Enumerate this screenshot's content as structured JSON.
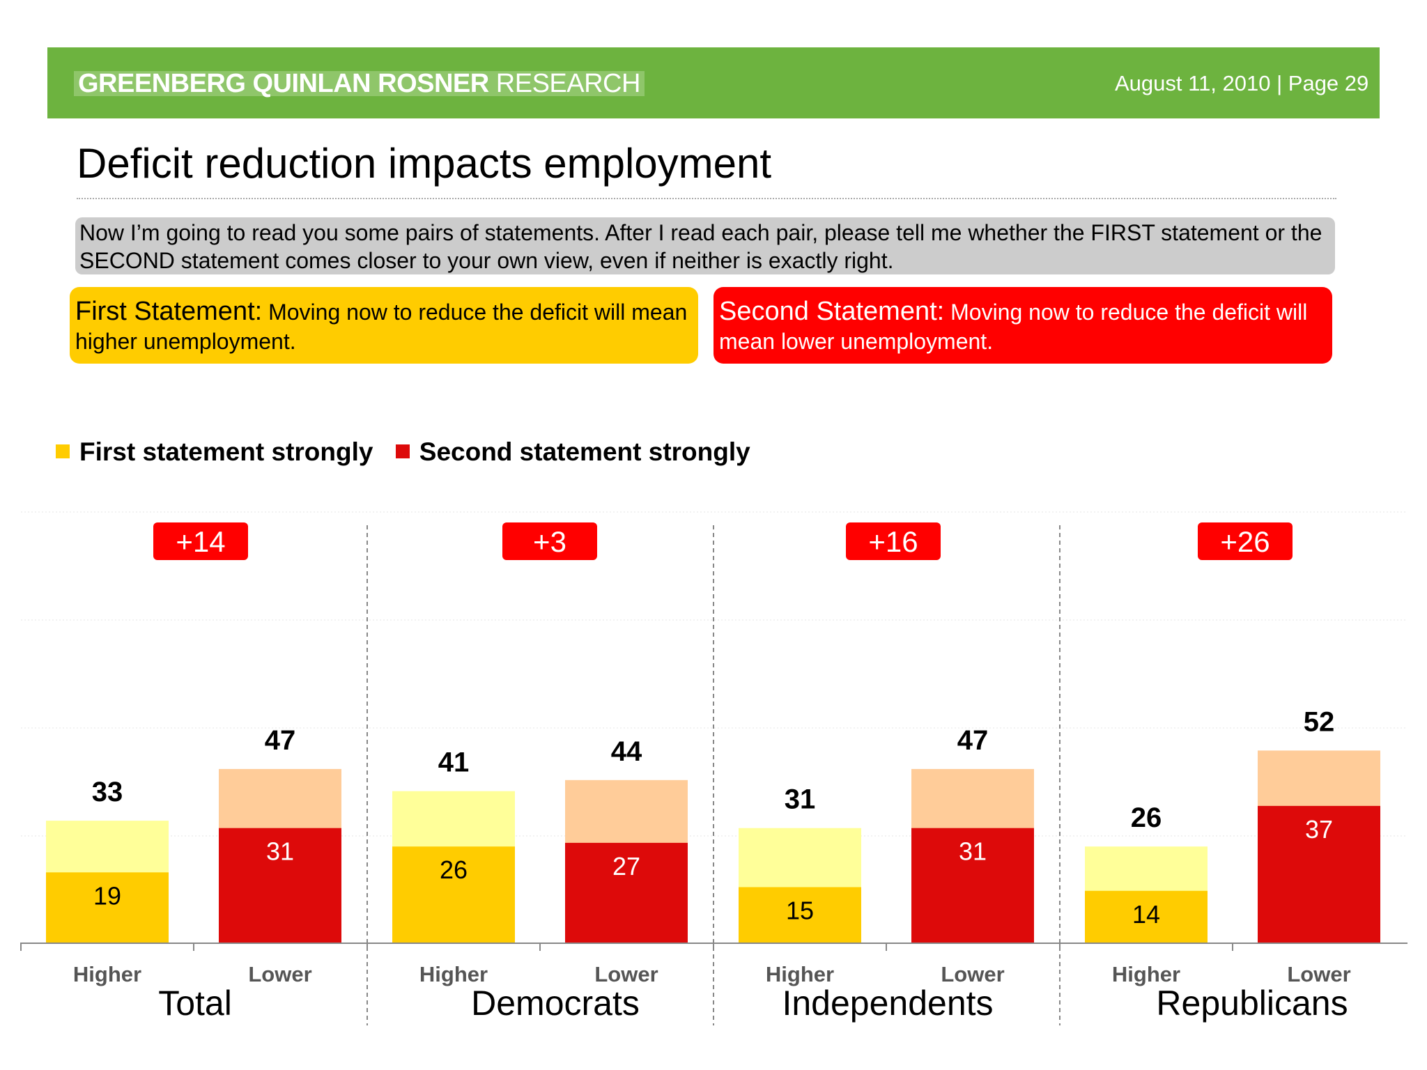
{
  "header": {
    "firm_bold": "GREENBERG QUINLAN ROSNER",
    "firm_light": "RESEARCH",
    "date_page": "August 11, 2010  |  Page 29"
  },
  "title": "Deficit reduction impacts employment",
  "question": "Now I’m going to read you some pairs of statements. After I read each pair, please tell me whether the FIRST statement or the SECOND statement comes closer to your own view, even if neither is exactly right.",
  "statements": {
    "first_label": "First Statement:",
    "first_text": "Moving now to reduce the deficit will mean higher unemployment.",
    "second_label": "Second Statement:",
    "second_text": "Moving now to reduce the deficit will mean lower unemployment."
  },
  "colors": {
    "header_green": "#6db33f",
    "first_strong": "#ffcc00",
    "first_total": "#ffff99",
    "second_strong": "#dd0a0a",
    "second_total": "#ffcc99",
    "net_badge": "#ff0000"
  },
  "chart_data": {
    "type": "bar",
    "stacked": "overlay",
    "legend": [
      "First statement strongly",
      "Second statement strongly"
    ],
    "legend_position": "top-left",
    "ylim": [
      0,
      60
    ],
    "groups": [
      {
        "name": "Total",
        "net": "+14",
        "bars": [
          {
            "label": "Higher",
            "total": 33,
            "strong": 19,
            "series": "first"
          },
          {
            "label": "Lower",
            "total": 47,
            "strong": 31,
            "series": "second"
          }
        ]
      },
      {
        "name": "Democrats",
        "net": "+3",
        "bars": [
          {
            "label": "Higher",
            "total": 41,
            "strong": 26,
            "series": "first"
          },
          {
            "label": "Lower",
            "total": 44,
            "strong": 27,
            "series": "second"
          }
        ]
      },
      {
        "name": "Independents",
        "net": "+16",
        "bars": [
          {
            "label": "Higher",
            "total": 31,
            "strong": 15,
            "series": "first"
          },
          {
            "label": "Lower",
            "total": 47,
            "strong": 31,
            "series": "second"
          }
        ]
      },
      {
        "name": "Republicans",
        "net": "+26",
        "bars": [
          {
            "label": "Higher",
            "total": 26,
            "strong": 14,
            "series": "first"
          },
          {
            "label": "Lower",
            "total": 52,
            "strong": 37,
            "series": "second"
          }
        ]
      }
    ]
  }
}
